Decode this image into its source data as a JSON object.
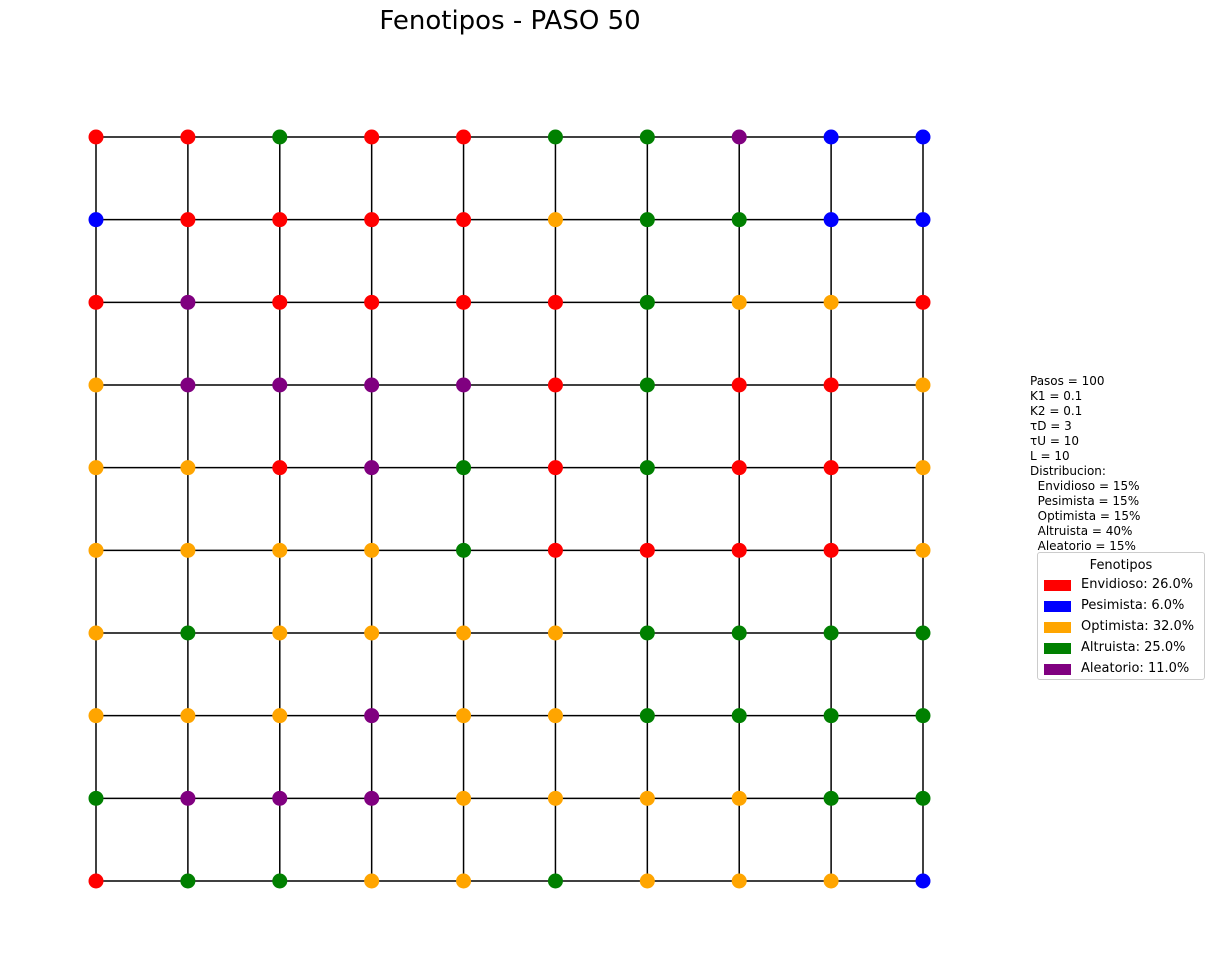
{
  "chart_data": {
    "type": "scatter",
    "title": "Fenotipos - PASO 50",
    "grid_size": 10,
    "colors": {
      "Envidioso": "#ff0000",
      "Pesimista": "#0000ff",
      "Optimista": "#ffa500",
      "Altruista": "#008000",
      "Aleatorio": "#800080"
    },
    "grid_rows": [
      [
        "Envidioso",
        "Envidioso",
        "Altruista",
        "Envidioso",
        "Envidioso",
        "Altruista",
        "Altruista",
        "Aleatorio",
        "Pesimista",
        "Pesimista"
      ],
      [
        "Pesimista",
        "Envidioso",
        "Envidioso",
        "Envidioso",
        "Envidioso",
        "Optimista",
        "Altruista",
        "Altruista",
        "Pesimista",
        "Pesimista"
      ],
      [
        "Envidioso",
        "Aleatorio",
        "Envidioso",
        "Envidioso",
        "Envidioso",
        "Envidioso",
        "Altruista",
        "Optimista",
        "Optimista",
        "Envidioso"
      ],
      [
        "Optimista",
        "Aleatorio",
        "Aleatorio",
        "Aleatorio",
        "Aleatorio",
        "Envidioso",
        "Altruista",
        "Envidioso",
        "Envidioso",
        "Optimista"
      ],
      [
        "Optimista",
        "Optimista",
        "Envidioso",
        "Aleatorio",
        "Altruista",
        "Envidioso",
        "Altruista",
        "Envidioso",
        "Envidioso",
        "Optimista"
      ],
      [
        "Optimista",
        "Optimista",
        "Optimista",
        "Optimista",
        "Altruista",
        "Envidioso",
        "Envidioso",
        "Envidioso",
        "Envidioso",
        "Optimista"
      ],
      [
        "Optimista",
        "Altruista",
        "Optimista",
        "Optimista",
        "Optimista",
        "Optimista",
        "Altruista",
        "Altruista",
        "Altruista",
        "Altruista"
      ],
      [
        "Optimista",
        "Optimista",
        "Optimista",
        "Aleatorio",
        "Optimista",
        "Optimista",
        "Altruista",
        "Altruista",
        "Altruista",
        "Altruista"
      ],
      [
        "Altruista",
        "Aleatorio",
        "Aleatorio",
        "Aleatorio",
        "Optimista",
        "Optimista",
        "Optimista",
        "Optimista",
        "Altruista",
        "Altruista"
      ],
      [
        "Envidioso",
        "Altruista",
        "Altruista",
        "Optimista",
        "Optimista",
        "Altruista",
        "Optimista",
        "Optimista",
        "Optimista",
        "Pesimista"
      ]
    ],
    "params": [
      "Pasos = 100",
      "K1 = 0.1",
      "K2 = 0.1",
      "τD = 3",
      "τU = 10",
      "L = 10",
      "Distribucion:",
      "  Envidioso = 15%",
      "  Pesimista = 15%",
      "  Optimista = 15%",
      "  Altruista = 40%",
      "  Aleatorio = 15%"
    ],
    "legend": {
      "title": "Fenotipos",
      "placement": "right",
      "items": [
        {
          "label": "Envidioso: 26.0%",
          "color": "#ff0000"
        },
        {
          "label": "Pesimista: 6.0%",
          "color": "#0000ff"
        },
        {
          "label": "Optimista: 32.0%",
          "color": "#ffa500"
        },
        {
          "label": "Altruista: 25.0%",
          "color": "#008000"
        },
        {
          "label": "Aleatorio: 11.0%",
          "color": "#800080"
        }
      ]
    }
  }
}
